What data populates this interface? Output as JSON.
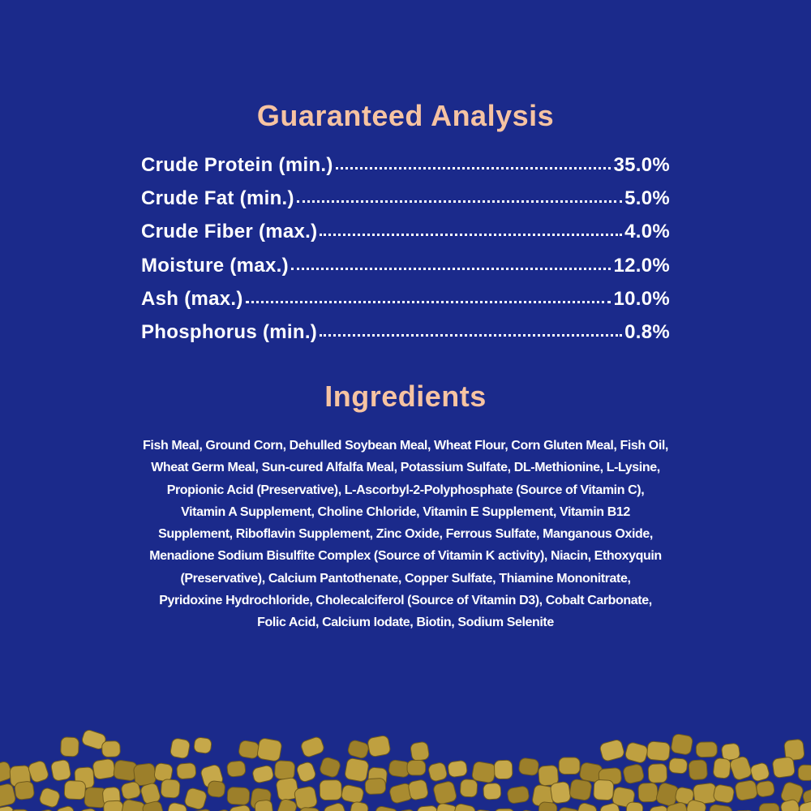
{
  "analysis": {
    "title": "Guaranteed Analysis",
    "rows": [
      {
        "label": "Crude Protein (min.)",
        "value": "35.0%"
      },
      {
        "label": "Crude Fat (min.)",
        "value": "5.0%"
      },
      {
        "label": "Crude Fiber (max.)",
        "value": "4.0%"
      },
      {
        "label": "Moisture (max.)",
        "value": "12.0%"
      },
      {
        "label": "Ash (max.)",
        "value": "10.0%"
      },
      {
        "label": "Phosphorus (min.)",
        "value": "0.8%"
      }
    ]
  },
  "ingredients": {
    "title": "Ingredients",
    "lines": [
      "Fish Meal, Ground Corn, Dehulled Soybean Meal, Wheat Flour, Corn Gluten Meal, Fish Oil,",
      "Wheat Germ Meal, Sun-cured Alfalfa Meal, Potassium Sulfate, DL-Methionine, L-Lysine,",
      "Propionic Acid (Preservative), L-Ascorbyl-2-Polyphosphate (Source of Vitamin C),",
      "Vitamin A Supplement, Choline Chloride, Vitamin E Supplement, Vitamin B12",
      "Supplement, Riboflavin Supplement, Zinc Oxide, Ferrous Sulfate, Manganous Oxide,",
      "Menadione Sodium Bisulfite Complex (Source of Vitamin K activity), Niacin, Ethoxyquin",
      "(Preservative), Calcium Pantothenate, Copper Sulfate, Thiamine Mononitrate,",
      "Pyridoxine Hydrochloride, Cholecalciferol (Source of Vitamin D3), Cobalt Carbonate,",
      "Folic Acid, Calcium Iodate, Biotin, Sodium Selenite"
    ]
  }
}
